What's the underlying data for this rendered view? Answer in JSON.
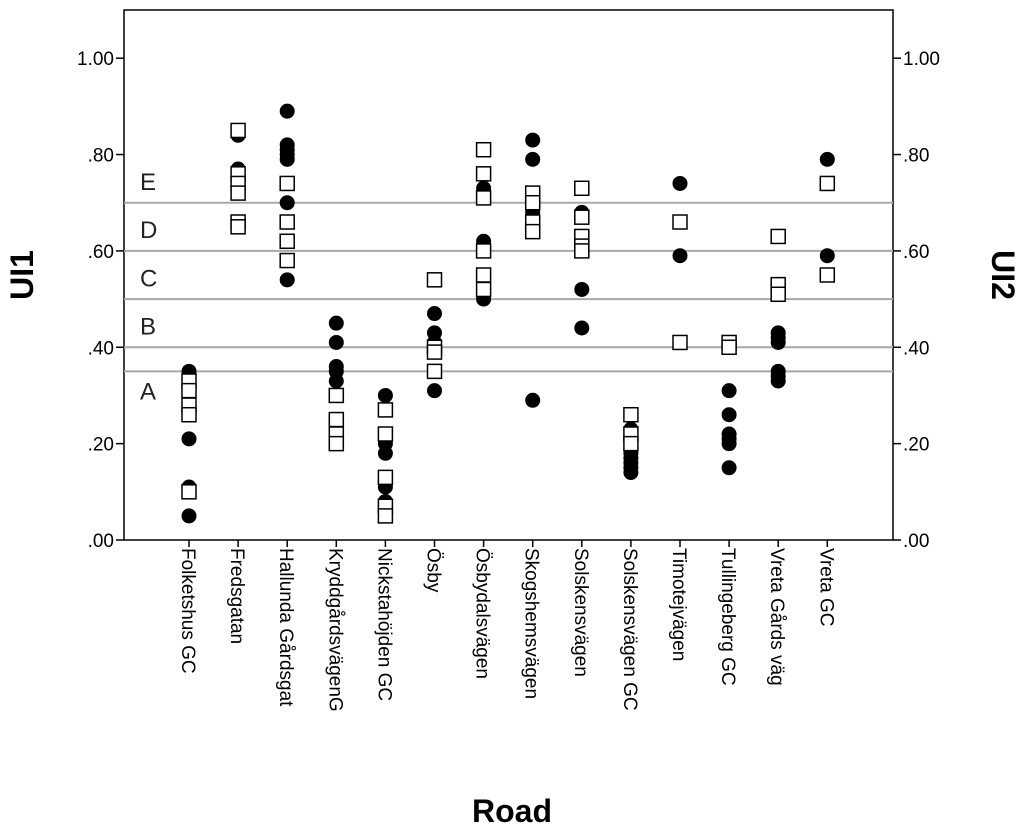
{
  "chart_data": {
    "type": "scatter",
    "xlabel": "Road",
    "ylabel_left": "UI1",
    "ylabel_right": "UI2",
    "ylim": [
      0,
      1.1
    ],
    "y_ticks": [
      {
        "value": 0.0,
        "label": ".00"
      },
      {
        "value": 0.2,
        "label": ".20"
      },
      {
        "value": 0.4,
        "label": ".40"
      },
      {
        "value": 0.6,
        "label": ".60"
      },
      {
        "value": 0.8,
        "label": ".80"
      },
      {
        "value": 1.0,
        "label": "1.00"
      }
    ],
    "categories": [
      "Folketshus GC",
      "Fredsgatan",
      "Hallunda Gårdsgat",
      "KryddgårdsvägenG",
      "Nickstahöjden GC",
      "Ösby",
      "Ösbydalsvägen",
      "Skogshemsvägen",
      "Solskensvägen",
      "Solskensvägen GC",
      "Timotejvägen",
      "Tullingeberg GC",
      "Vreta Gårds väg",
      "Vreta GC"
    ],
    "thresholds": [
      {
        "label": "A",
        "value": 0.35
      },
      {
        "label": "B",
        "value": 0.4
      },
      {
        "label": "C",
        "value": 0.5
      },
      {
        "label": "D",
        "value": 0.6
      },
      {
        "label": "E",
        "value": 0.7
      }
    ],
    "band_labels": [
      {
        "label": "E",
        "y": 0.745
      },
      {
        "label": "D",
        "y": 0.645
      },
      {
        "label": "C",
        "y": 0.545
      },
      {
        "label": "B",
        "y": 0.445
      },
      {
        "label": "A",
        "y": 0.31
      }
    ],
    "grid": false,
    "series": [
      {
        "marker": "filled-circle",
        "axis": "left",
        "points": [
          [
            0,
            0.35
          ],
          [
            0,
            0.33
          ],
          [
            0,
            0.21
          ],
          [
            0,
            0.11
          ],
          [
            0,
            0.05
          ],
          [
            1,
            0.84
          ],
          [
            1,
            0.77
          ],
          [
            1,
            0.76
          ],
          [
            1,
            0.73
          ],
          [
            1,
            0.72
          ],
          [
            1,
            0.66
          ],
          [
            2,
            0.89
          ],
          [
            2,
            0.82
          ],
          [
            2,
            0.81
          ],
          [
            2,
            0.8
          ],
          [
            2,
            0.79
          ],
          [
            2,
            0.7
          ],
          [
            2,
            0.54
          ],
          [
            3,
            0.45
          ],
          [
            3,
            0.41
          ],
          [
            3,
            0.36
          ],
          [
            3,
            0.35
          ],
          [
            3,
            0.33
          ],
          [
            3,
            0.25
          ],
          [
            3,
            0.24
          ],
          [
            3,
            0.23
          ],
          [
            4,
            0.3
          ],
          [
            4,
            0.22
          ],
          [
            4,
            0.21
          ],
          [
            4,
            0.2
          ],
          [
            4,
            0.18
          ],
          [
            4,
            0.12
          ],
          [
            4,
            0.11
          ],
          [
            4,
            0.08
          ],
          [
            4,
            0.07
          ],
          [
            5,
            0.47
          ],
          [
            5,
            0.43
          ],
          [
            5,
            0.41
          ],
          [
            5,
            0.31
          ],
          [
            6,
            0.73
          ],
          [
            6,
            0.62
          ],
          [
            6,
            0.61
          ],
          [
            6,
            0.53
          ],
          [
            6,
            0.52
          ],
          [
            6,
            0.5
          ],
          [
            7,
            0.83
          ],
          [
            7,
            0.79
          ],
          [
            7,
            0.72
          ],
          [
            7,
            0.7
          ],
          [
            7,
            0.68
          ],
          [
            7,
            0.29
          ],
          [
            8,
            0.68
          ],
          [
            8,
            0.67
          ],
          [
            8,
            0.52
          ],
          [
            8,
            0.44
          ],
          [
            9,
            0.23
          ],
          [
            9,
            0.21
          ],
          [
            9,
            0.2
          ],
          [
            9,
            0.19
          ],
          [
            9,
            0.18
          ],
          [
            9,
            0.17
          ],
          [
            9,
            0.16
          ],
          [
            9,
            0.15
          ],
          [
            9,
            0.14
          ],
          [
            10,
            0.74
          ],
          [
            10,
            0.59
          ],
          [
            11,
            0.31
          ],
          [
            11,
            0.26
          ],
          [
            11,
            0.22
          ],
          [
            11,
            0.21
          ],
          [
            11,
            0.2
          ],
          [
            11,
            0.15
          ],
          [
            12,
            0.53
          ],
          [
            12,
            0.43
          ],
          [
            12,
            0.42
          ],
          [
            12,
            0.41
          ],
          [
            12,
            0.35
          ],
          [
            12,
            0.34
          ],
          [
            12,
            0.33
          ],
          [
            13,
            0.79
          ],
          [
            13,
            0.59
          ]
        ]
      },
      {
        "marker": "open-square",
        "axis": "right",
        "points": [
          [
            0,
            0.33
          ],
          [
            0,
            0.31
          ],
          [
            0,
            0.28
          ],
          [
            0,
            0.26
          ],
          [
            0,
            0.1
          ],
          [
            1,
            0.85
          ],
          [
            1,
            0.76
          ],
          [
            1,
            0.74
          ],
          [
            1,
            0.72
          ],
          [
            1,
            0.66
          ],
          [
            1,
            0.65
          ],
          [
            2,
            0.74
          ],
          [
            2,
            0.66
          ],
          [
            2,
            0.62
          ],
          [
            2,
            0.58
          ],
          [
            3,
            0.3
          ],
          [
            3,
            0.25
          ],
          [
            3,
            0.22
          ],
          [
            3,
            0.2
          ],
          [
            4,
            0.27
          ],
          [
            4,
            0.22
          ],
          [
            4,
            0.13
          ],
          [
            4,
            0.07
          ],
          [
            4,
            0.05
          ],
          [
            5,
            0.54
          ],
          [
            5,
            0.4
          ],
          [
            5,
            0.39
          ],
          [
            5,
            0.35
          ],
          [
            6,
            0.81
          ],
          [
            6,
            0.76
          ],
          [
            6,
            0.71
          ],
          [
            6,
            0.6
          ],
          [
            6,
            0.55
          ],
          [
            6,
            0.52
          ],
          [
            7,
            0.72
          ],
          [
            7,
            0.7
          ],
          [
            7,
            0.66
          ],
          [
            7,
            0.64
          ],
          [
            8,
            0.73
          ],
          [
            8,
            0.67
          ],
          [
            8,
            0.63
          ],
          [
            8,
            0.61
          ],
          [
            8,
            0.6
          ],
          [
            9,
            0.26
          ],
          [
            9,
            0.22
          ],
          [
            9,
            0.2
          ],
          [
            10,
            0.66
          ],
          [
            10,
            0.41
          ],
          [
            11,
            0.41
          ],
          [
            11,
            0.4
          ],
          [
            12,
            0.63
          ],
          [
            12,
            0.53
          ],
          [
            12,
            0.51
          ],
          [
            13,
            0.74
          ],
          [
            13,
            0.55
          ]
        ]
      }
    ]
  }
}
